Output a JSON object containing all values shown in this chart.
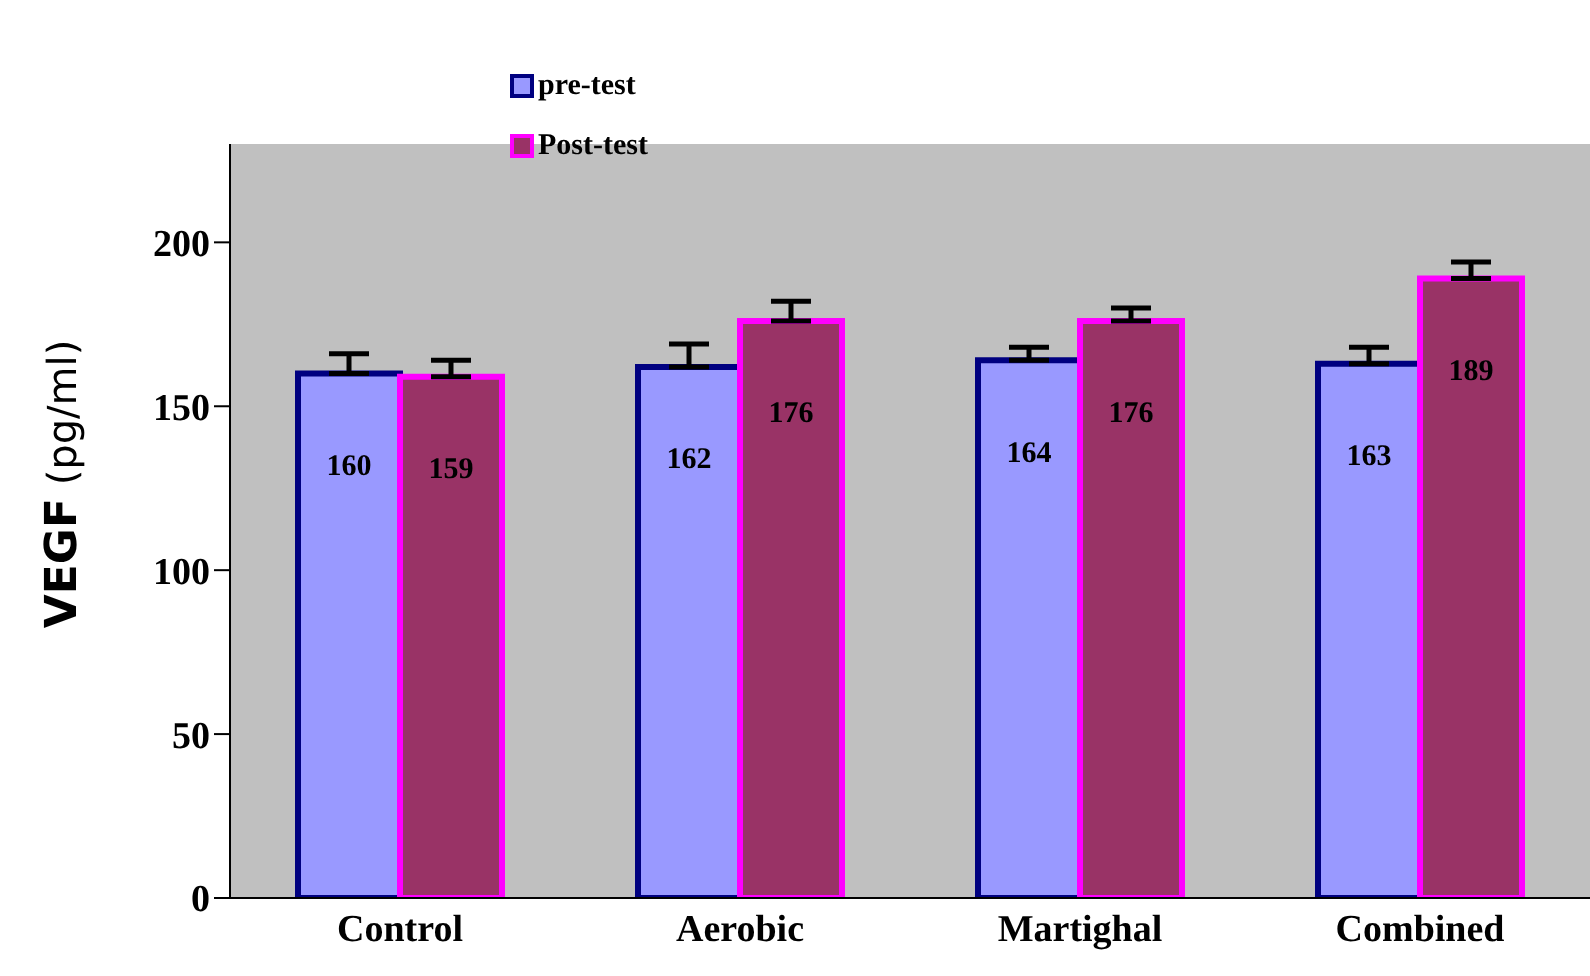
{
  "chart_data": {
    "type": "bar",
    "ylabel": "VEGF (pg/ml)",
    "categories": [
      "Control",
      "Aerobic",
      "Martighal",
      "Combined"
    ],
    "series": [
      {
        "name": "pre-test",
        "color": "#9999ff",
        "values": [
          160,
          162,
          164,
          163
        ],
        "errors": [
          [
            160,
            166
          ],
          [
            162,
            169
          ],
          [
            164,
            168
          ],
          [
            163,
            168
          ]
        ]
      },
      {
        "name": "Post-test",
        "color": "#993366",
        "values": [
          159,
          176,
          176,
          189
        ],
        "errors": [
          [
            159,
            164
          ],
          [
            176,
            182
          ],
          [
            176,
            180
          ],
          [
            189,
            194
          ]
        ]
      }
    ],
    "ylim": [
      0,
      230
    ],
    "yticks": [
      0,
      50,
      100,
      150,
      200
    ],
    "grid": false,
    "legend": "top left",
    "data_labels": true
  }
}
